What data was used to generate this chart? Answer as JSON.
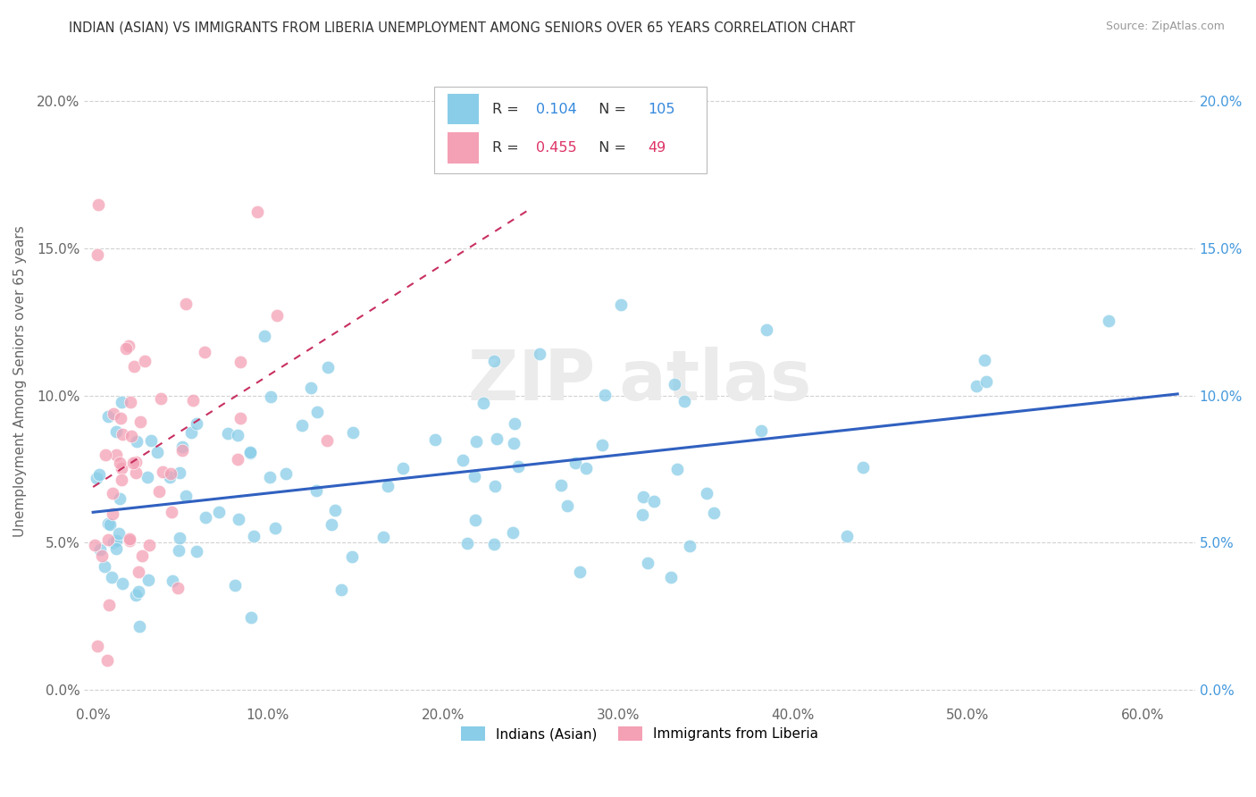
{
  "title": "INDIAN (ASIAN) VS IMMIGRANTS FROM LIBERIA UNEMPLOYMENT AMONG SENIORS OVER 65 YEARS CORRELATION CHART",
  "source": "Source: ZipAtlas.com",
  "ylabel": "Unemployment Among Seniors over 65 years",
  "xlabel_ticks": [
    "0.0%",
    "10.0%",
    "20.0%",
    "30.0%",
    "40.0%",
    "50.0%",
    "60.0%"
  ],
  "xlabel_vals": [
    0.0,
    0.1,
    0.2,
    0.3,
    0.4,
    0.5,
    0.6
  ],
  "ytick_labels": [
    "0.0%",
    "5.0%",
    "10.0%",
    "15.0%",
    "20.0%"
  ],
  "ytick_vals": [
    0.0,
    0.05,
    0.1,
    0.15,
    0.2
  ],
  "xlim": [
    -0.005,
    0.63
  ],
  "ylim": [
    -0.005,
    0.215
  ],
  "R_indian": 0.104,
  "N_indian": 105,
  "R_liberia": 0.455,
  "N_liberia": 49,
  "color_indian": "#89CDE8",
  "color_liberia": "#F4A0B5",
  "line_color_indian": "#3060C0",
  "line_color_liberia": "#C83060",
  "legend_label_indian": "Indians (Asian)",
  "legend_label_liberia": "Immigrants from Liberia",
  "indian_seed": 12,
  "liberia_seed": 7
}
